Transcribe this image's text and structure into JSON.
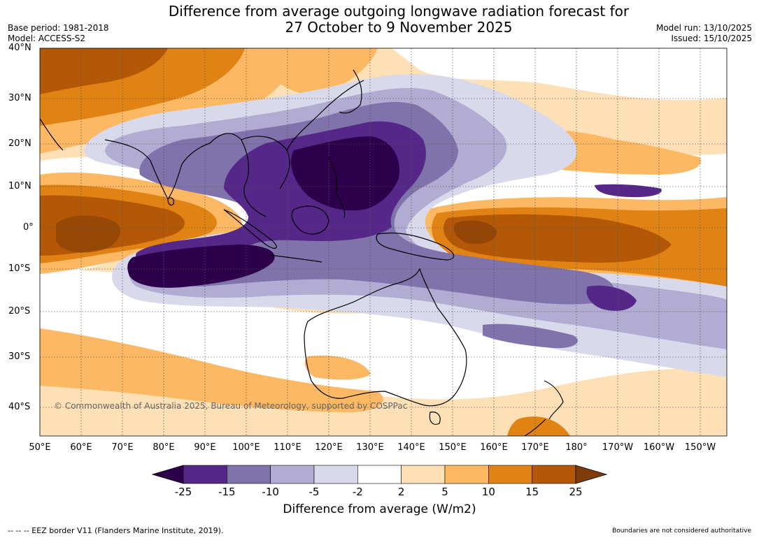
{
  "title_line1": "Difference from average outgoing longwave radiation forecast for",
  "title_line2": "27 October to 9 November 2025",
  "base_period": "Base period: 1981-2018",
  "model": "Model: ACCESS-S2",
  "model_run": "Model run: 13/10/2025",
  "issued": "Issued: 15/10/2025",
  "copyright": "© Commonwealth of Australia 2025, Bureau of Meteorology, supported by COSPPac",
  "lat_labels": [
    "40°N",
    "30°N",
    "20°N",
    "10°N",
    "0°",
    "10°S",
    "20°S",
    "30°S",
    "40°S"
  ],
  "lon_labels": [
    "50°E",
    "60°E",
    "70°E",
    "80°E",
    "90°E",
    "100°E",
    "110°E",
    "120°E",
    "130°E",
    "140°E",
    "150°E",
    "160°E",
    "170°E",
    "180°",
    "170°W",
    "160°W",
    "150°W"
  ],
  "colorbar": {
    "title": "Difference from average (W/m2)",
    "ticks": [
      "-25",
      "-15",
      "-10",
      "-5",
      "-2",
      "2",
      "5",
      "10",
      "15",
      "25"
    ],
    "colors": [
      "#2d004b",
      "#542788",
      "#8073ac",
      "#b2abd2",
      "#d8daeb",
      "#ffffff",
      "#fee0b6",
      "#fdb863",
      "#e08214",
      "#b35806",
      "#7f3b08"
    ]
  },
  "footer_left": "--  --  -- EEZ border V11 (Flanders Marine Institute, 2019).",
  "footer_right": "Boundaries are not considered authoritative"
}
